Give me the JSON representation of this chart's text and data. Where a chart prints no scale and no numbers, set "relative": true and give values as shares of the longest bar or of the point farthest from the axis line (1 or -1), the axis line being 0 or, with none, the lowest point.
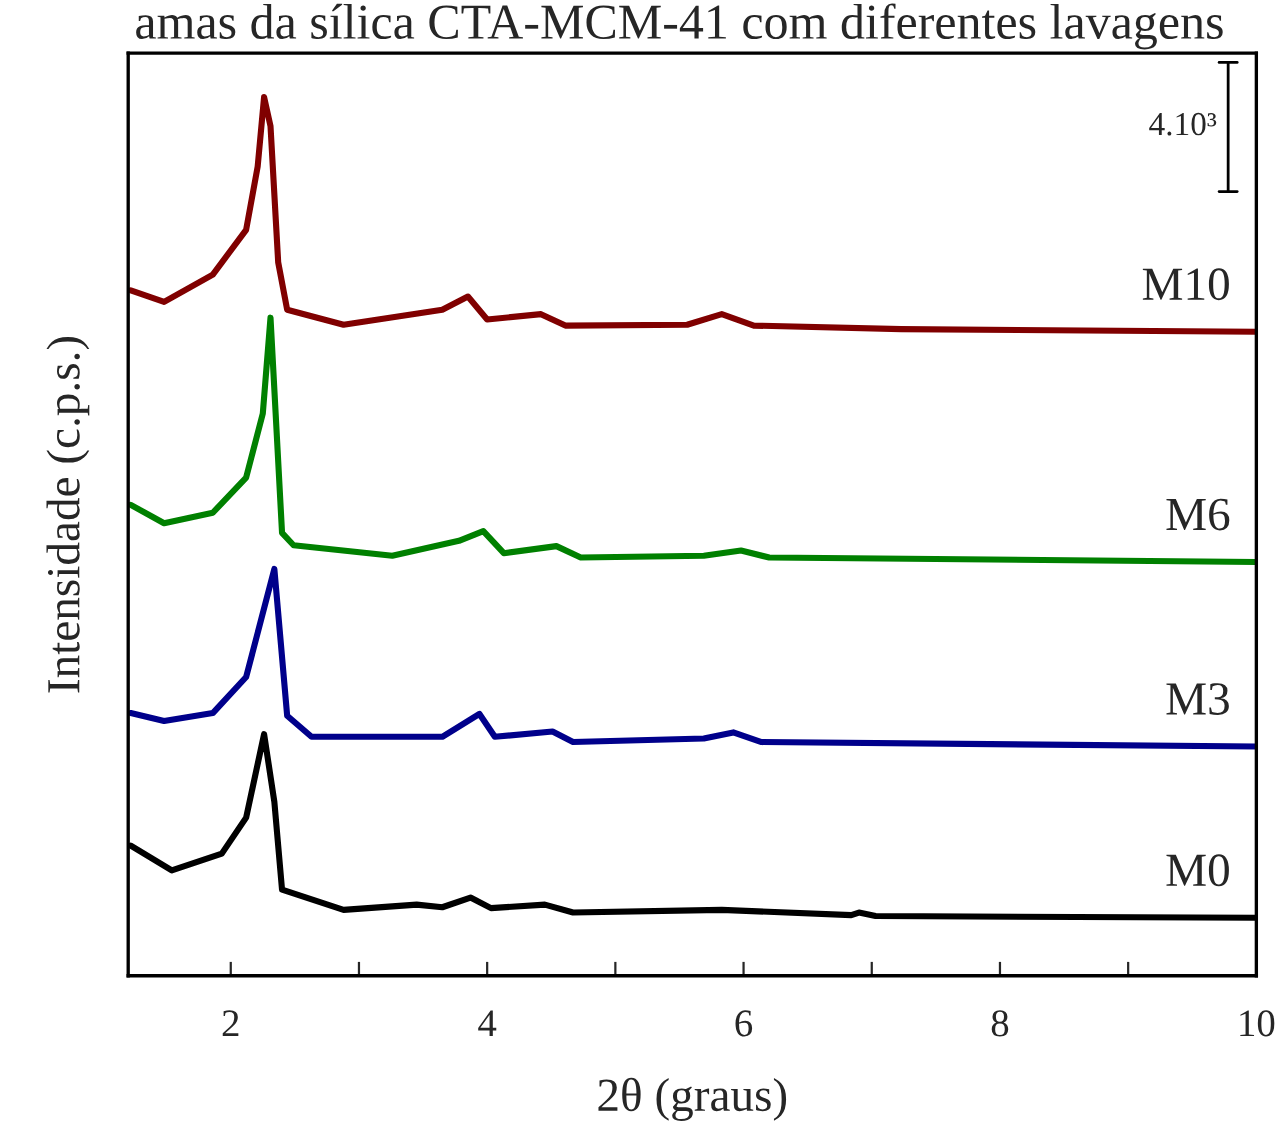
{
  "chart_data": {
    "type": "line",
    "title": "amas da sílica CTA-MCM-41 com diferentes lavagens",
    "xlabel": "2θ (graus)",
    "ylabel": "Intensidade (c.p.s.)",
    "relative": true,
    "xlim": [
      1.2,
      10
    ],
    "xticks": [
      2,
      {
        "value": 3,
        "label": null
      },
      4,
      {
        "value": 5,
        "label": null
      },
      6,
      {
        "value": 7,
        "label": null
      },
      8,
      {
        "value": 9,
        "label": null
      },
      10
    ],
    "tick_labels": "x",
    "grid": false,
    "legend": false,
    "annotations": [
      "4.10³"
    ],
    "series": [
      {
        "name": "M10",
        "color": "#800000",
        "x": [
          1.22,
          1.48,
          1.86,
          2.12,
          2.21,
          2.26,
          2.31,
          2.37,
          2.44,
          2.88,
          3.65,
          3.85,
          4.0,
          4.42,
          4.61,
          5.56,
          5.83,
          6.08,
          7.23,
          10.0
        ],
        "values": [
          0.78,
          0.767,
          0.798,
          0.849,
          0.921,
          1.0,
          0.967,
          0.812,
          0.758,
          0.741,
          0.758,
          0.773,
          0.747,
          0.753,
          0.74,
          0.741,
          0.753,
          0.74,
          0.736,
          0.733
        ]
      },
      {
        "name": "M6",
        "color": "#008000",
        "x": [
          1.22,
          1.48,
          1.86,
          2.12,
          2.25,
          2.31,
          2.4,
          2.49,
          3.26,
          3.78,
          3.97,
          4.13,
          4.54,
          4.73,
          5.69,
          5.98,
          6.2,
          10.0
        ],
        "values": [
          0.536,
          0.515,
          0.527,
          0.567,
          0.64,
          0.749,
          0.504,
          0.49,
          0.478,
          0.495,
          0.506,
          0.481,
          0.489,
          0.476,
          0.478,
          0.484,
          0.476,
          0.471
        ]
      },
      {
        "name": "M3",
        "color": "#00008b",
        "x": [
          1.22,
          1.48,
          1.86,
          2.12,
          2.34,
          2.44,
          2.63,
          3.65,
          3.94,
          4.06,
          4.51,
          4.67,
          5.69,
          5.92,
          6.14,
          10.0
        ],
        "values": [
          0.299,
          0.29,
          0.299,
          0.34,
          0.463,
          0.296,
          0.272,
          0.272,
          0.298,
          0.272,
          0.278,
          0.266,
          0.27,
          0.277,
          0.266,
          0.261
        ]
      },
      {
        "name": "M0",
        "color": "#000000",
        "x": [
          1.22,
          1.54,
          1.93,
          2.12,
          2.26,
          2.34,
          2.4,
          2.88,
          3.45,
          3.65,
          3.87,
          4.03,
          4.45,
          4.67,
          5.83,
          6.84,
          6.9,
          7.03,
          10.0
        ],
        "values": [
          0.148,
          0.12,
          0.139,
          0.18,
          0.275,
          0.198,
          0.098,
          0.075,
          0.081,
          0.078,
          0.089,
          0.077,
          0.081,
          0.072,
          0.075,
          0.069,
          0.072,
          0.068,
          0.066
        ]
      }
    ]
  }
}
